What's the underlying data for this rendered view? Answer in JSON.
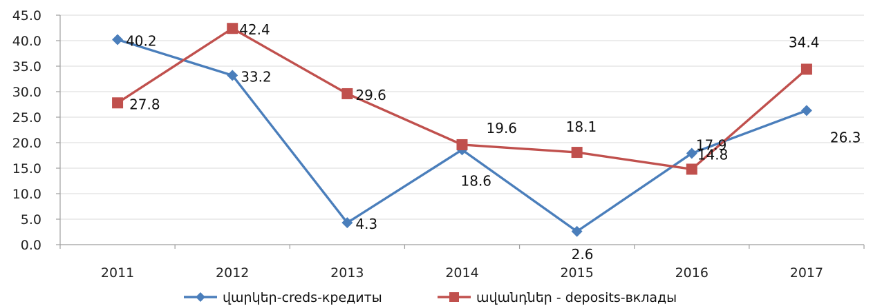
{
  "chart_data": {
    "type": "line",
    "categories": [
      "2011",
      "2012",
      "2013",
      "2014",
      "2015",
      "2016",
      "2017"
    ],
    "ylim": [
      0,
      45
    ],
    "yticks": [
      "0.0",
      "5.0",
      "10.0",
      "15.0",
      "20.0",
      "25.0",
      "30.0",
      "35.0",
      "40.0",
      "45.0"
    ],
    "grid": true,
    "legend_position": "bottom",
    "series": [
      {
        "name": "վարկեր-creds-кредиты",
        "color": "#4a7ebb",
        "marker": "diamond",
        "values": [
          40.2,
          33.2,
          4.3,
          18.6,
          2.6,
          17.9,
          26.3
        ],
        "labels": [
          "40.2",
          "33.2",
          "4.3",
          "18.6",
          "2.6",
          "17.9",
          "26.3"
        ]
      },
      {
        "name": "ավանդներ - deposits-вклады",
        "color": "#c0504d",
        "marker": "square",
        "values": [
          27.8,
          42.4,
          29.6,
          19.6,
          18.1,
          14.8,
          34.4
        ],
        "labels": [
          "27.8",
          "42.4",
          "29.6",
          "19.6",
          "18.1",
          "14.8",
          "34.4"
        ]
      }
    ]
  }
}
